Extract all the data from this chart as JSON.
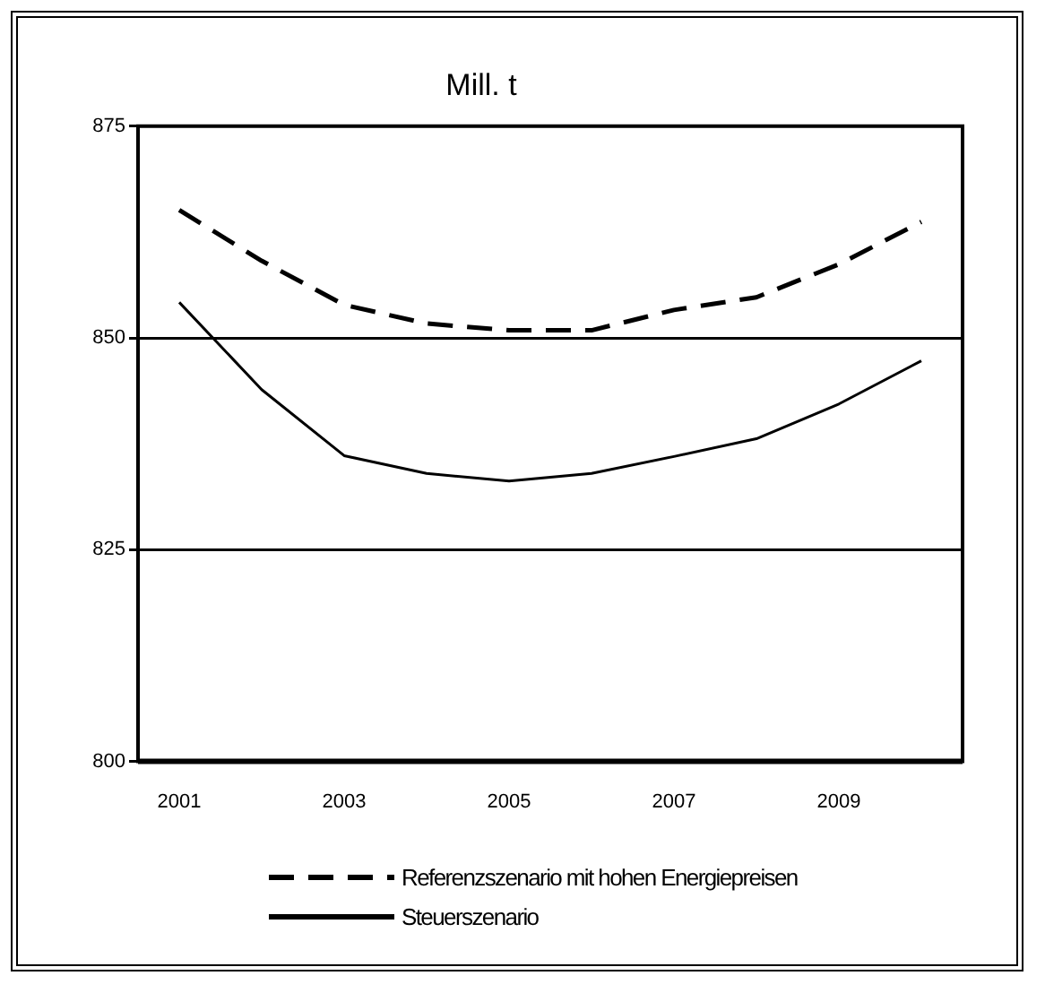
{
  "chart_data": {
    "type": "line",
    "title": "Mill. t",
    "categories": [
      "2001",
      null,
      "2003",
      null,
      "2005",
      null,
      "2007",
      null,
      "2009",
      null
    ],
    "series": [
      {
        "name": "Referenzszenario mit hohen Energiepreisen",
        "color": "#000000",
        "line_style": "dashed",
        "values": [
          865.1,
          859.1,
          853.9,
          851.7,
          850.9,
          850.9,
          853.3,
          854.8,
          858.7,
          863.7
        ]
      },
      {
        "name": "Steuerszenario",
        "color": "#000000",
        "line_style": "solid",
        "values": [
          854.2,
          843.9,
          836.1,
          834.0,
          833.1,
          834.0,
          836.0,
          838.1,
          842.2,
          847.3
        ]
      }
    ],
    "ylim": [
      800,
      875
    ],
    "yticks": [
      800,
      825,
      850,
      875
    ],
    "grid": "y",
    "legend": "bottom",
    "marker": "none"
  }
}
